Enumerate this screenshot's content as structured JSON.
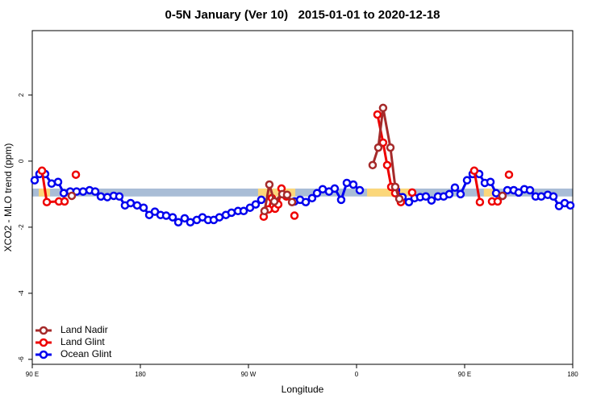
{
  "chart_data": {
    "type": "line",
    "title": "0-5N January (Ver 10)   2015-01-01 to 2020-12-18",
    "x_label": "Longitude",
    "y_label": "XCO2 - MLO trend (ppm)",
    "xlim": [
      90,
      540
    ],
    "ylim": [
      -6.15,
      3.95
    ],
    "xticks": [
      {
        "value": 90,
        "label": "90 E"
      },
      180,
      {
        "value": 270,
        "label": "90 W"
      },
      {
        "value": 360,
        "label": "0"
      },
      {
        "value": 450,
        "label": "90 E"
      },
      {
        "value": 540,
        "label": "180"
      }
    ],
    "yticks": [
      -6,
      -4,
      -2,
      0,
      2
    ],
    "band": {
      "range": [
        -1.07,
        -0.83
      ],
      "color": "#a9bdd6",
      "highlight_color": "#fbd77a",
      "highlights": [
        [
          95.4,
          104.8
        ],
        [
          278,
          309
        ],
        [
          368.7,
          404.3
        ],
        [
          466,
          475.5
        ]
      ]
    },
    "legend": "bottom-left",
    "series": [
      {
        "name": "Ocean Glint",
        "color": "#0000ee",
        "x": [
          92.0,
          96.0,
          100.7,
          106.1,
          111.5,
          116.2,
          121.6,
          126.9,
          132.3,
          137.7,
          142.4,
          147.1,
          152.5,
          157.8,
          162.5,
          167.2,
          171.9,
          177.3,
          182.7,
          187.4,
          192.1,
          196.8,
          201.5,
          206.9,
          211.6,
          216.9,
          221.6,
          227.0,
          231.7,
          236.4,
          241.1,
          245.8,
          251.2,
          255.9,
          261.3,
          266.0,
          271.3,
          276.0,
          280.7,
          null,
          308.3,
          313.0,
          317.7,
          323.0,
          327.1,
          331.8,
          337.1,
          341.8,
          347.2,
          351.9,
          357.3,
          362.7,
          null,
          392.9,
          398.3,
          403.6,
          408.3,
          413.0,
          417.7,
          422.4,
          427.8,
          432.5,
          437.2,
          441.9,
          446.6,
          452.0,
          456.7,
          462.1,
          466.8,
          471.5,
          476.2,
          481.5,
          485.6,
          490.9,
          495.0,
          499.7,
          504.4,
          509.1,
          513.8,
          519.2,
          523.9,
          528.6,
          533.3,
          538.0
        ],
        "values": [
          -0.58,
          -0.39,
          -0.39,
          -0.68,
          -0.63,
          -0.97,
          -0.92,
          -0.92,
          -0.92,
          -0.88,
          -0.92,
          -1.07,
          -1.09,
          -1.05,
          -1.07,
          -1.34,
          -1.27,
          -1.34,
          -1.41,
          -1.63,
          -1.53,
          -1.63,
          -1.65,
          -1.7,
          -1.85,
          -1.73,
          -1.85,
          -1.78,
          -1.7,
          -1.78,
          -1.78,
          -1.7,
          -1.63,
          -1.56,
          -1.51,
          -1.51,
          -1.41,
          -1.31,
          -1.17,
          null,
          -1.22,
          -1.17,
          -1.24,
          -1.12,
          -0.97,
          -0.85,
          -0.92,
          -0.83,
          -1.17,
          -0.66,
          -0.71,
          -0.88,
          null,
          -0.88,
          -1.09,
          -1.24,
          -1.12,
          -1.09,
          -1.07,
          -1.19,
          -1.07,
          -1.07,
          -1.0,
          -0.8,
          -1.0,
          -0.58,
          -0.39,
          -0.39,
          -0.66,
          -0.63,
          -0.97,
          -1.05,
          -0.88,
          -0.88,
          -0.95,
          -0.85,
          -0.88,
          -1.07,
          -1.07,
          -1.02,
          -1.07,
          -1.36,
          -1.27,
          -1.34
        ]
      },
      {
        "name": "Land Glint",
        "color": "#ee0000",
        "x": [
          98.1,
          102.1,
          112.2,
          116.9,
          null,
          126.3,
          null,
          282.7,
          286.8,
          289.5,
          292.2,
          294.8,
          297.5,
          301.6,
          null,
          308.3,
          null,
          377.4,
          382.1,
          385.5,
          388.9,
          392.2,
          396.9,
          null,
          406.3,
          null,
          458.0,
          462.7,
          null,
          472.8,
          477.5,
          null,
          486.9
        ],
        "values": [
          -0.29,
          -1.24,
          -1.22,
          -1.22,
          null,
          -0.41,
          null,
          -1.68,
          -1.46,
          -1.12,
          -1.44,
          -1.31,
          -0.83,
          -1.07,
          null,
          -1.65,
          null,
          1.41,
          0.56,
          -0.12,
          -0.78,
          -0.97,
          -1.24,
          null,
          -0.95,
          null,
          -0.29,
          -1.24,
          null,
          -1.22,
          -1.22,
          null,
          -0.41
        ]
      },
      {
        "name": "Land Nadir",
        "color": "#a52a2a",
        "x": [
          122.9,
          null,
          283.4,
          287.4,
          291.5,
          298.2,
          302.2,
          306.3,
          null,
          373.4,
          378.1,
          382.1,
          388.2,
          392.2,
          395.6,
          null,
          481.5
        ],
        "values": [
          -1.05,
          null,
          -1.51,
          -0.71,
          -1.22,
          -1.0,
          -1.02,
          -1.24,
          null,
          -0.12,
          0.41,
          1.61,
          0.41,
          -0.78,
          -1.14,
          null,
          -1.05
        ]
      }
    ]
  }
}
